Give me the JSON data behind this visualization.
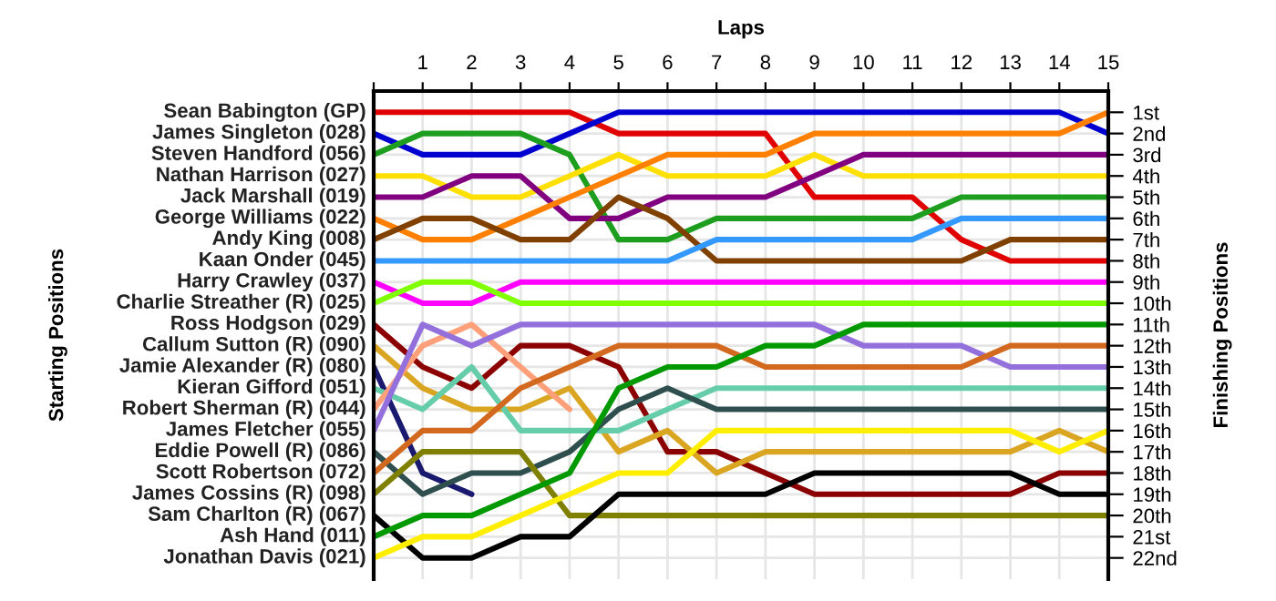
{
  "chart_data": {
    "type": "line",
    "xlabel": "Laps",
    "ylabel": "Finishing Positions",
    "annotations": [
      "Starting Positions"
    ],
    "x": [
      0,
      1,
      2,
      3,
      4,
      5,
      6,
      7,
      8,
      9,
      10,
      11,
      12,
      13,
      14,
      15
    ],
    "xlim": [
      0,
      15
    ],
    "xticks": [
      {
        "value": 0,
        "label": null
      },
      1,
      2,
      3,
      4,
      5,
      6,
      7,
      8,
      9,
      10,
      11,
      12,
      13,
      14,
      15
    ],
    "ylim": [
      23,
      0
    ],
    "yticks": [
      {
        "value": 1,
        "label": "1st"
      },
      {
        "value": 2,
        "label": "2nd"
      },
      {
        "value": 3,
        "label": "3rd"
      },
      {
        "value": 4,
        "label": "4th"
      },
      {
        "value": 5,
        "label": "5th"
      },
      {
        "value": 6,
        "label": "6th"
      },
      {
        "value": 7,
        "label": "7th"
      },
      {
        "value": 8,
        "label": "8th"
      },
      {
        "value": 9,
        "label": "9th"
      },
      {
        "value": 10,
        "label": "10th"
      },
      {
        "value": 11,
        "label": "11th"
      },
      {
        "value": 12,
        "label": "12th"
      },
      {
        "value": 13,
        "label": "13th"
      },
      {
        "value": 14,
        "label": "14th"
      },
      {
        "value": 15,
        "label": "15th"
      },
      {
        "value": 16,
        "label": "16th"
      },
      {
        "value": 17,
        "label": "17th"
      },
      {
        "value": 18,
        "label": "18th"
      },
      {
        "value": 19,
        "label": "19th"
      },
      {
        "value": 20,
        "label": "20th"
      },
      {
        "value": 21,
        "label": "21st"
      },
      {
        "value": 22,
        "label": "22nd"
      }
    ],
    "grid": true,
    "marker": "none",
    "line_style": "solid",
    "series": [
      {
        "name": "Sean Babington (GP)",
        "color": "#e00000",
        "values": [
          1,
          1,
          1,
          1,
          1,
          2,
          2,
          2,
          2,
          5,
          5,
          5,
          7,
          8,
          8,
          8
        ]
      },
      {
        "name": "James Singleton (028)",
        "color": "#0000d0",
        "values": [
          2,
          3,
          3,
          3,
          2,
          1,
          1,
          1,
          1,
          1,
          1,
          1,
          1,
          1,
          1,
          2
        ]
      },
      {
        "name": "Steven Handford (056)",
        "color": "#1e9e1e",
        "values": [
          3,
          2,
          2,
          2,
          3,
          7,
          7,
          6,
          6,
          6,
          6,
          6,
          5,
          5,
          5,
          5
        ]
      },
      {
        "name": "Nathan Harrison (027)",
        "color": "#ffe000",
        "values": [
          4,
          4,
          5,
          5,
          4,
          3,
          4,
          4,
          4,
          3,
          4,
          4,
          4,
          4,
          4,
          4
        ]
      },
      {
        "name": "Jack Marshall (019)",
        "color": "#800080",
        "values": [
          5,
          5,
          4,
          4,
          6,
          6,
          5,
          5,
          5,
          4,
          3,
          3,
          3,
          3,
          3,
          3
        ]
      },
      {
        "name": "George Williams (022)",
        "color": "#ff8000",
        "values": [
          6,
          7,
          7,
          6,
          5,
          4,
          3,
          3,
          3,
          2,
          2,
          2,
          2,
          2,
          2,
          1
        ]
      },
      {
        "name": "Andy King (008)",
        "color": "#804000",
        "values": [
          7,
          6,
          6,
          7,
          7,
          5,
          6,
          8,
          8,
          8,
          8,
          8,
          8,
          7,
          7,
          7
        ]
      },
      {
        "name": "Kaan Onder (045)",
        "color": "#3399ff",
        "values": [
          8,
          8,
          8,
          8,
          8,
          8,
          8,
          7,
          7,
          7,
          7,
          7,
          6,
          6,
          6,
          6
        ]
      },
      {
        "name": "Harry Crawley (037)",
        "color": "#ff00ff",
        "values": [
          9,
          10,
          10,
          9,
          9,
          9,
          9,
          9,
          9,
          9,
          9,
          9,
          9,
          9,
          9,
          9
        ]
      },
      {
        "name": "Charlie Streather (R) (025)",
        "color": "#80ff00",
        "values": [
          10,
          9,
          9,
          10,
          10,
          10,
          10,
          10,
          10,
          10,
          10,
          10,
          10,
          10,
          10,
          10
        ]
      },
      {
        "name": "Ross Hodgson (029)",
        "color": "#8b0000",
        "values": [
          11,
          13,
          14,
          12,
          12,
          13,
          17,
          17,
          18,
          19,
          19,
          19,
          19,
          19,
          18,
          18
        ]
      },
      {
        "name": "Callum Sutton (R) (090)",
        "color": "#daa520",
        "values": [
          12,
          14,
          15,
          15,
          14,
          17,
          16,
          18,
          17,
          17,
          17,
          17,
          17,
          17,
          16,
          17
        ]
      },
      {
        "name": "Jamie Alexander (R) (080)",
        "color": "#191970",
        "values": [
          13,
          18,
          19,
          null,
          null,
          null,
          null,
          null,
          null,
          null,
          null,
          null,
          null,
          null,
          null,
          null
        ]
      },
      {
        "name": "Kieran Gifford (051)",
        "color": "#66cdaa",
        "values": [
          14,
          15,
          13,
          16,
          16,
          16,
          15,
          14,
          14,
          14,
          14,
          14,
          14,
          14,
          14,
          14
        ]
      },
      {
        "name": "Robert Sherman (R) (044)",
        "color": "#ffa07a",
        "values": [
          15,
          12,
          11,
          13,
          15,
          null,
          null,
          null,
          null,
          null,
          null,
          null,
          null,
          null,
          null,
          null
        ]
      },
      {
        "name": "James Fletcher (055)",
        "color": "#9370db",
        "values": [
          16,
          11,
          12,
          11,
          11,
          11,
          11,
          11,
          11,
          11,
          12,
          12,
          12,
          13,
          13,
          13
        ]
      },
      {
        "name": "Eddie Powell (R) (086)",
        "color": "#2f4f4f",
        "values": [
          17,
          19,
          18,
          18,
          17,
          15,
          14,
          15,
          15,
          15,
          15,
          15,
          15,
          15,
          15,
          15
        ]
      },
      {
        "name": "Scott Robertson (072)",
        "color": "#d2691e",
        "values": [
          18,
          16,
          16,
          14,
          13,
          12,
          12,
          12,
          13,
          13,
          13,
          13,
          13,
          12,
          12,
          12
        ]
      },
      {
        "name": "James Cossins (R) (098)",
        "color": "#808000",
        "values": [
          19,
          17,
          17,
          17,
          20,
          20,
          20,
          20,
          20,
          20,
          20,
          20,
          20,
          20,
          20,
          20
        ]
      },
      {
        "name": "Sam Charlton (R) (067)",
        "color": "#000000",
        "values": [
          20,
          22,
          22,
          21,
          21,
          19,
          19,
          19,
          19,
          18,
          18,
          18,
          18,
          18,
          19,
          19
        ]
      },
      {
        "name": "Ash Hand (011)",
        "color": "#009900",
        "values": [
          21,
          20,
          20,
          19,
          18,
          14,
          13,
          13,
          12,
          12,
          11,
          11,
          11,
          11,
          11,
          11
        ]
      },
      {
        "name": "Jonathan Davis (021)",
        "color": "#ffee00",
        "values": [
          22,
          21,
          21,
          20,
          19,
          18,
          18,
          16,
          16,
          16,
          16,
          16,
          16,
          16,
          17,
          16
        ]
      }
    ]
  }
}
